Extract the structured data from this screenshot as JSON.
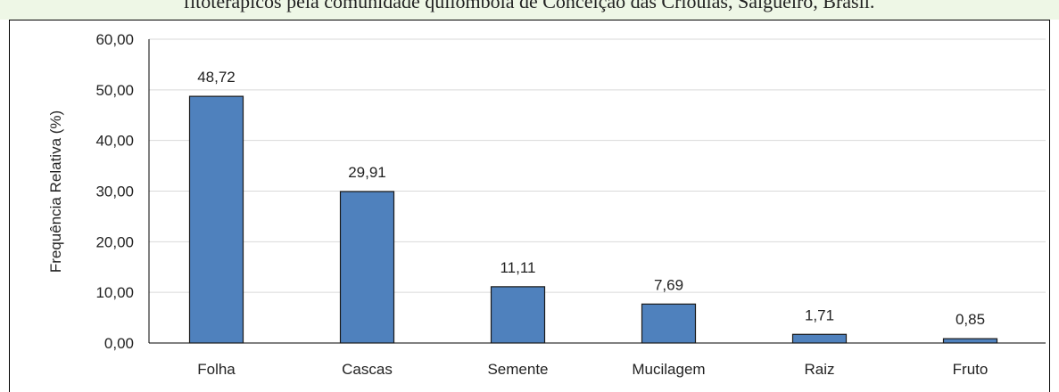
{
  "chart_data": {
    "type": "bar",
    "title": "fitoterápicos pela comunidade quilombola de Conceição das Crioulas, Salgueiro, Brasil.",
    "y_label": "Frequência Relativa (%)",
    "categories": [
      "Folha",
      "Cascas",
      "Semente",
      "Mucilagem",
      "Raiz",
      "Fruto"
    ],
    "values": [
      48.72,
      29.91,
      11.11,
      7.69,
      1.71,
      0.85
    ],
    "value_labels": [
      "48,72",
      "29,91",
      "11,11",
      "7,69",
      "1,71",
      "0,85"
    ],
    "color": "#4f81bd",
    "ylim": [
      0,
      60
    ],
    "yticks": [
      {
        "value": 0,
        "label": "0,00"
      },
      {
        "value": 10,
        "label": "10,00"
      },
      {
        "value": 20,
        "label": "20,00"
      },
      {
        "value": 30,
        "label": "30,00"
      },
      {
        "value": 40,
        "label": "40,00"
      },
      {
        "value": 50,
        "label": "50,00"
      },
      {
        "value": 60,
        "label": "60,00"
      }
    ],
    "grid": true
  }
}
